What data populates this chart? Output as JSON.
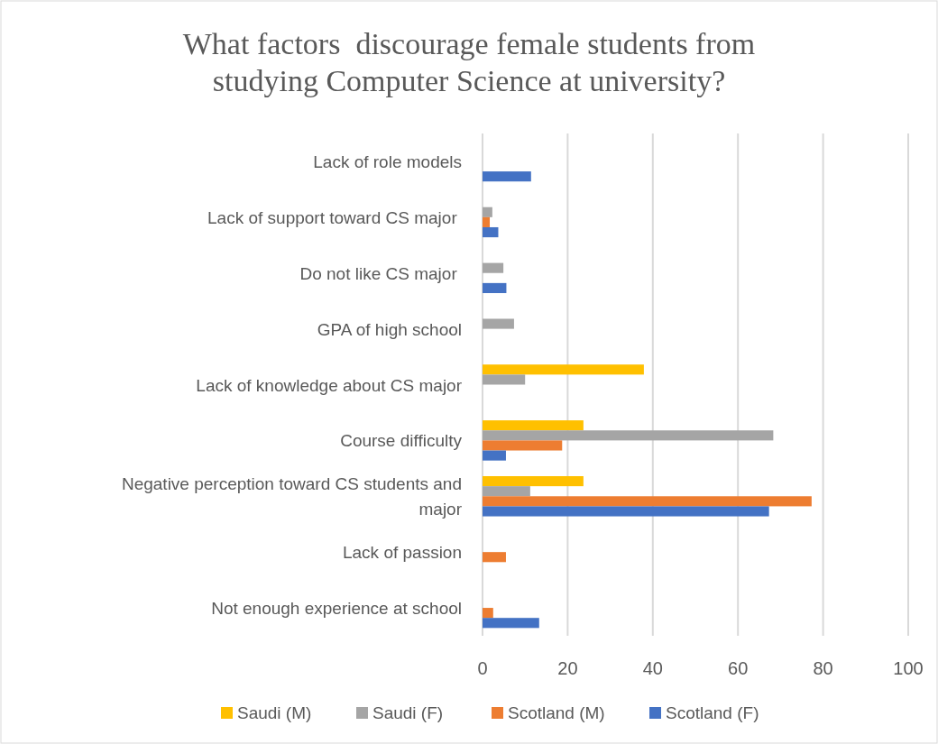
{
  "chart_data": {
    "type": "bar",
    "orientation": "horizontal",
    "title": "What factors  discourage female students from studying Computer Science at university?",
    "categories": [
      "Lack of role models",
      "Lack of support toward CS major ",
      "Do not like CS major ",
      "GPA of high school",
      "Lack of knowledge about CS major",
      "Course difficulty",
      "Negative perception toward CS students and major",
      "Lack of passion",
      "Not enough experience at school"
    ],
    "series": [
      {
        "name": "Saudi (M)",
        "color": "#ffc000",
        "values": [
          null,
          null,
          null,
          null,
          37.9,
          23.7,
          23.7,
          null,
          null
        ]
      },
      {
        "name": "Saudi (F)",
        "color": "#a5a5a5",
        "values": [
          null,
          2.3,
          4.9,
          7.4,
          10,
          68.3,
          11.2,
          null,
          null
        ]
      },
      {
        "name": "Scotland (M)",
        "color": "#ed7d31",
        "values": [
          null,
          1.7,
          null,
          null,
          null,
          18.7,
          77.3,
          5.5,
          2.5
        ]
      },
      {
        "name": "Scotland (F)",
        "color": "#4472c4",
        "values": [
          11.4,
          3.7,
          5.6,
          null,
          null,
          5.5,
          67.3,
          null,
          13.3
        ]
      }
    ],
    "xlim": [
      0,
      100
    ],
    "xticks": [
      0,
      20,
      40,
      60,
      80,
      100
    ],
    "grid": "x",
    "legend": "bottom"
  }
}
